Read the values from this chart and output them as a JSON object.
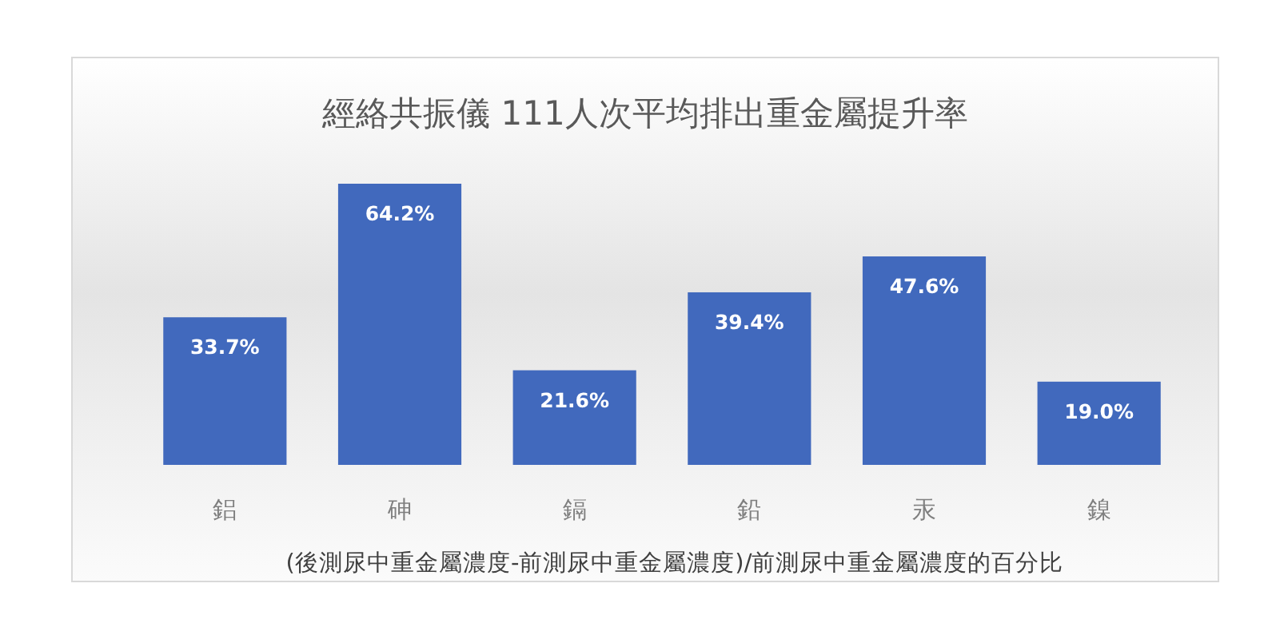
{
  "chart_data": {
    "type": "bar",
    "title": "經絡共振儀 111人次平均排出重金屬提升率",
    "xlabel": "(後測尿中重金屬濃度-前測尿中重金屬濃度)/前測尿中重金屬濃度的百分比",
    "categories": [
      "鋁",
      "砷",
      "鎘",
      "鉛",
      "汞",
      "鎳"
    ],
    "values": [
      33.7,
      64.2,
      21.6,
      39.4,
      47.6,
      19.0
    ],
    "value_labels": [
      "33.7%",
      "64.2%",
      "21.6%",
      "39.4%",
      "47.6%",
      "19.0%"
    ],
    "color": "#4169bd"
  }
}
